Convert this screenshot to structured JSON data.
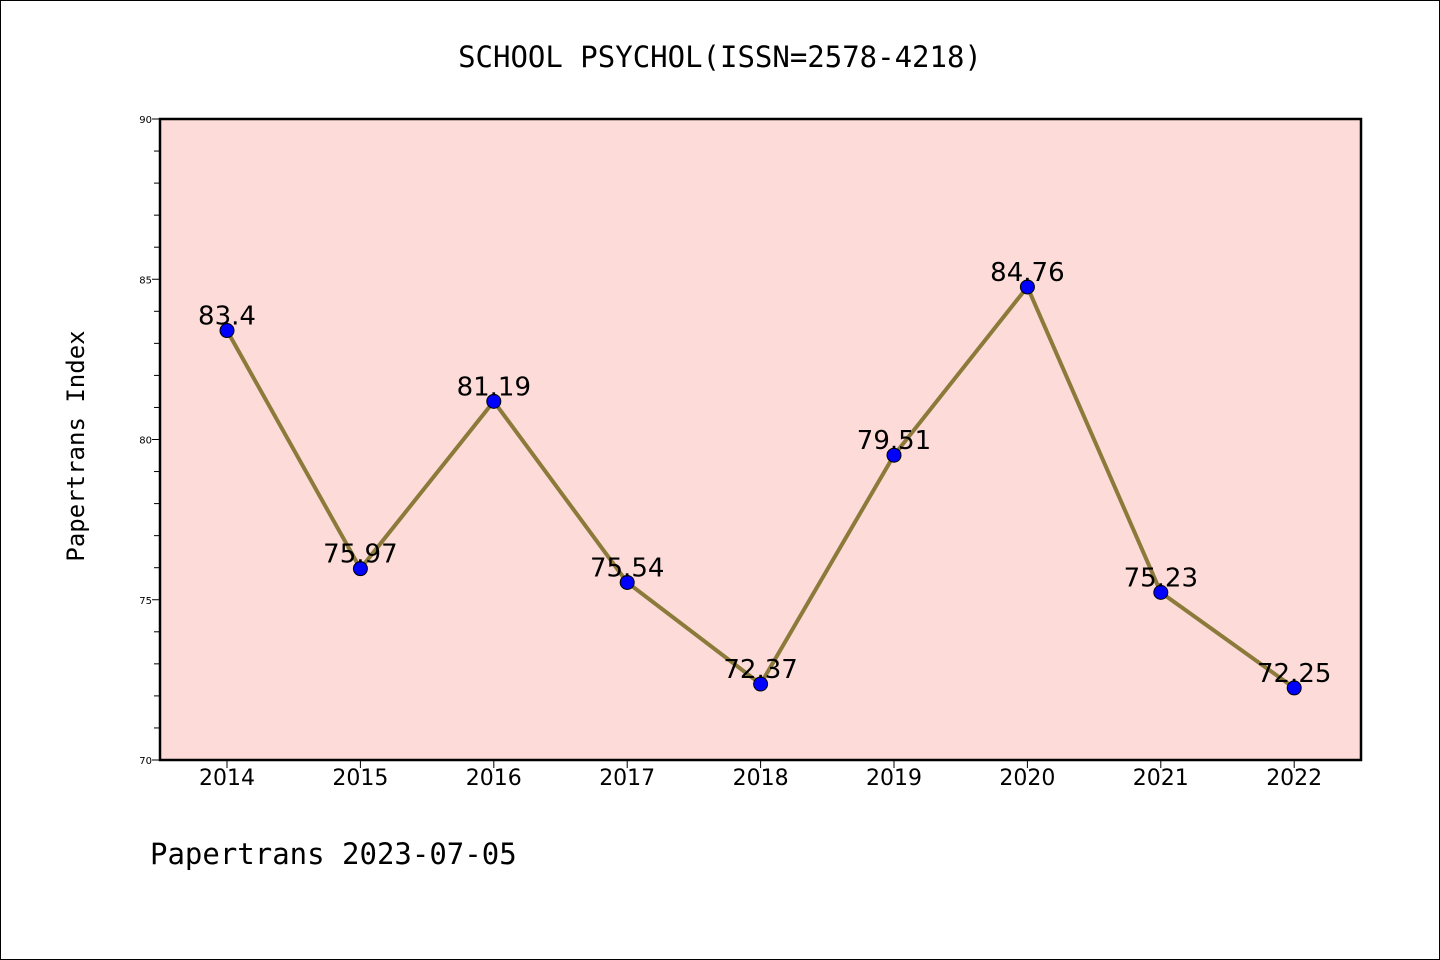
{
  "chart_data": {
    "type": "line",
    "title": "SCHOOL PSYCHOL(ISSN=2578-4218)",
    "ylabel": "Papertrans Index",
    "xlabel": "",
    "footer": "Papertrans 2023-07-05",
    "categories": [
      "2014",
      "2015",
      "2016",
      "2017",
      "2018",
      "2019",
      "2020",
      "2021",
      "2022"
    ],
    "values": [
      83.4,
      75.97,
      81.19,
      75.54,
      72.37,
      79.51,
      84.76,
      75.23,
      72.25
    ],
    "value_labels": [
      "83.4",
      "75.97",
      "81.19",
      "75.54",
      "72.37",
      "79.51",
      "84.76",
      "75.23",
      "72.25"
    ],
    "ylim": [
      70,
      90
    ],
    "yticks": [
      70,
      75,
      80,
      85,
      90
    ],
    "grid": false,
    "colors": {
      "plot_background": "#fddbd8",
      "line": "#8b7a3a",
      "marker": "#0000ff"
    }
  }
}
